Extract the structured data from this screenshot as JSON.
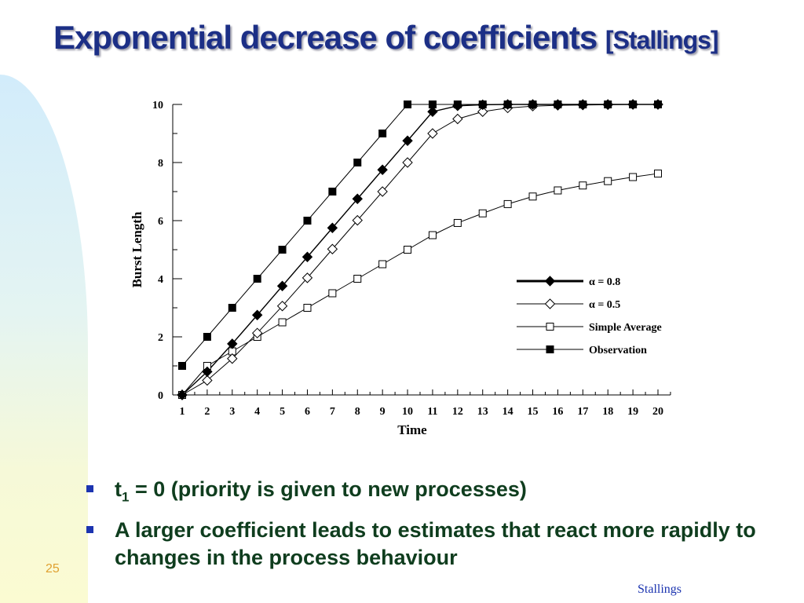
{
  "slide": {
    "title_main": "Exponential decrease of coefficients ",
    "title_suffix": "[Stallings]",
    "bullets": [
      {
        "pre": "t",
        "sub": "1",
        "post": " = 0 (priority is given to new processes)"
      },
      {
        "pre": "A larger coefficient leads to estimates that react more rapidly to changes in the process behaviour",
        "sub": "",
        "post": ""
      }
    ],
    "slide_number": "25",
    "footer": "Stallings"
  },
  "colors": {
    "title": "#1c2f86",
    "bullet_text": "#0f3d1e",
    "bullet_marker": "#1c34b0",
    "slide_number": "#e0a030",
    "footer": "#1c34b0"
  },
  "chart_data": {
    "type": "line",
    "xlabel": "Time",
    "ylabel": "Burst Length",
    "x": [
      1,
      2,
      3,
      4,
      5,
      6,
      7,
      8,
      9,
      10,
      11,
      12,
      13,
      14,
      15,
      16,
      17,
      18,
      19,
      20
    ],
    "xlim": [
      1,
      20
    ],
    "ylim": [
      0,
      10
    ],
    "y_ticks": [
      0,
      2,
      4,
      6,
      8,
      10
    ],
    "grid": false,
    "legend_position": "right",
    "series": [
      {
        "name": "α = 0.8",
        "marker": "diamond-filled",
        "line_weight": "heavy",
        "values": [
          0,
          0.8,
          1.76,
          2.75,
          3.75,
          4.75,
          5.75,
          6.75,
          7.75,
          8.75,
          9.75,
          9.95,
          9.99,
          10,
          10,
          10,
          10,
          10,
          10,
          10
        ]
      },
      {
        "name": "α = 0.5",
        "marker": "diamond-open",
        "line_weight": "normal",
        "values": [
          0,
          0.5,
          1.25,
          2.13,
          3.06,
          4.03,
          5.02,
          6.01,
          7.0,
          8.0,
          9.0,
          9.5,
          9.75,
          9.88,
          9.94,
          9.97,
          9.98,
          9.99,
          10,
          10
        ]
      },
      {
        "name": "Simple Average",
        "marker": "square-open",
        "line_weight": "normal",
        "values": [
          0,
          1.0,
          1.5,
          2.0,
          2.5,
          3.0,
          3.5,
          4.0,
          4.5,
          5.0,
          5.5,
          5.92,
          6.25,
          6.57,
          6.83,
          7.04,
          7.21,
          7.36,
          7.5,
          7.62
        ]
      },
      {
        "name": "Observation",
        "marker": "square-filled",
        "line_weight": "normal",
        "values": [
          1,
          2,
          3,
          4,
          5,
          6,
          7,
          8,
          9,
          10,
          10,
          10,
          10,
          10,
          10,
          10,
          10,
          10,
          10,
          10
        ]
      }
    ]
  }
}
